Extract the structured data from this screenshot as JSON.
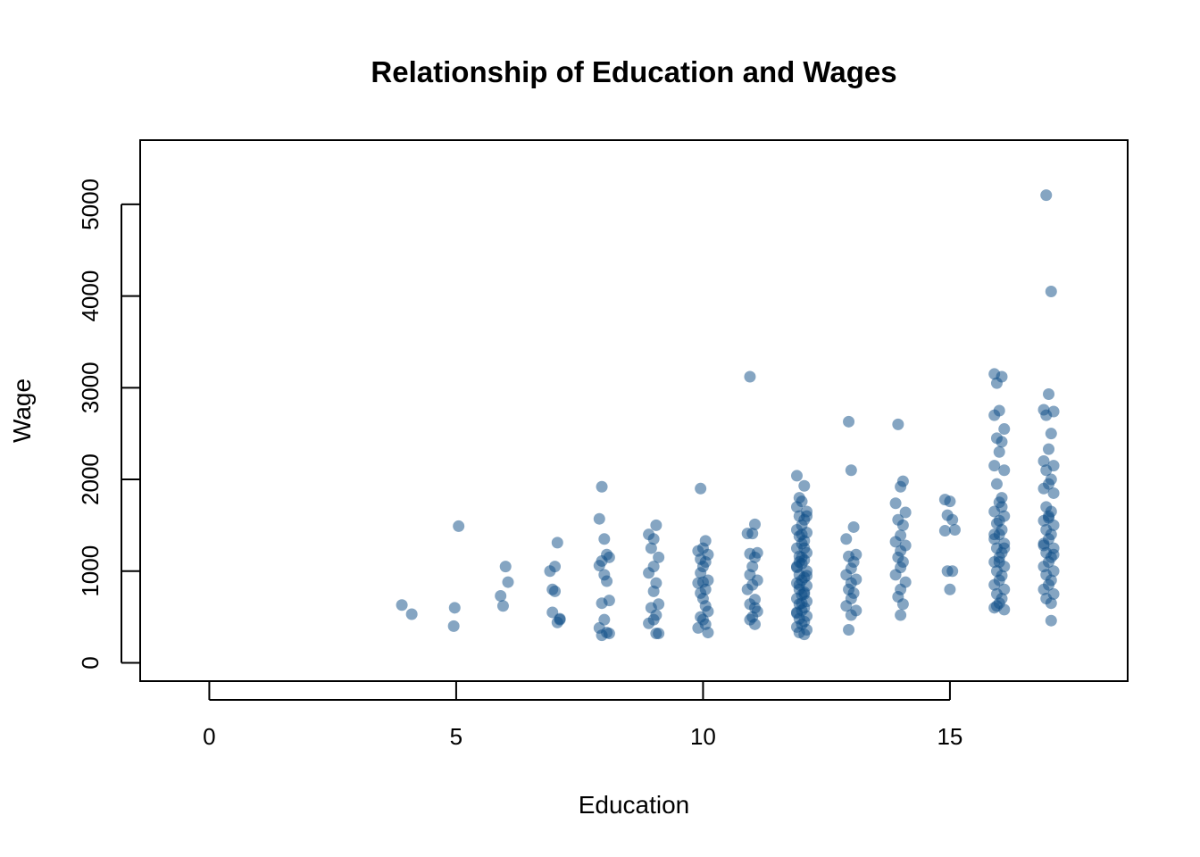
{
  "chart_data": {
    "type": "scatter",
    "title": "Relationship of Education and Wages",
    "xlabel": "Education",
    "ylabel": "Wage",
    "xlim": [
      -1.4,
      18.6
    ],
    "ylim": [
      -200,
      5700
    ],
    "x_ticks": [
      0,
      5,
      10,
      15
    ],
    "y_ticks": [
      0,
      1000,
      2000,
      3000,
      4000,
      5000
    ],
    "grid": false,
    "point_color": "#0B4C86",
    "point_opacity": 0.5,
    "x": [
      3.9,
      4.1,
      4.95,
      5.05,
      4.97,
      5.9,
      6.0,
      6.05,
      5.95,
      6.95,
      7.05,
      7.0,
      6.9,
      7.1,
      7.0,
      6.95,
      7.05,
      7.1,
      7.95,
      7.9,
      8.0,
      8.05,
      7.95,
      8.1,
      7.9,
      8.0,
      8.05,
      8.1,
      7.95,
      8.0,
      7.9,
      8.05,
      7.95,
      8.1,
      8.9,
      9.05,
      9.0,
      8.95,
      9.1,
      9.0,
      8.9,
      9.05,
      9.0,
      9.1,
      8.95,
      9.05,
      9.0,
      8.9,
      9.05,
      9.1,
      9.95,
      10.05,
      10.0,
      9.9,
      10.1,
      9.95,
      10.05,
      10.0,
      9.95,
      10.1,
      10.0,
      9.9,
      10.05,
      9.95,
      10.0,
      10.05,
      10.1,
      9.95,
      10.0,
      10.05,
      9.9,
      10.1,
      10.95,
      11.05,
      11.0,
      10.9,
      11.1,
      10.95,
      11.05,
      11.0,
      10.95,
      11.1,
      11.0,
      10.9,
      11.05,
      10.95,
      11.05,
      11.1,
      11.0,
      10.95,
      11.05,
      11.9,
      12.05,
      11.95,
      12.0,
      11.9,
      12.1,
      11.95,
      12.05,
      12.0,
      11.9,
      12.1,
      11.95,
      12.05,
      12.0,
      11.9,
      12.1,
      11.95,
      12.05,
      12.0,
      11.9,
      12.1,
      11.95,
      12.05,
      12.0,
      11.9,
      12.1,
      11.95,
      12.05,
      12.0,
      11.9,
      12.1,
      11.95,
      12.05,
      12.0,
      11.9,
      12.1,
      11.95,
      12.05,
      12.0,
      11.9,
      12.1,
      11.95,
      12.05,
      12.0,
      11.9,
      12.1,
      11.95,
      12.05,
      12.0,
      11.9,
      12.1,
      12.0,
      12.05,
      11.95,
      12.95,
      13.0,
      13.05,
      12.9,
      13.1,
      12.95,
      13.05,
      13.0,
      12.9,
      13.1,
      13.0,
      12.95,
      13.05,
      13.0,
      12.9,
      13.1,
      13.0,
      12.95,
      13.95,
      14.05,
      14.0,
      13.9,
      14.1,
      13.95,
      14.05,
      14.0,
      13.9,
      14.1,
      14.0,
      13.95,
      14.05,
      14.0,
      13.9,
      14.1,
      14.0,
      13.95,
      14.05,
      14.0,
      14.9,
      15.0,
      14.95,
      15.05,
      14.9,
      15.1,
      14.95,
      15.05,
      15.0,
      15.9,
      16.05,
      15.95,
      16.0,
      15.9,
      16.1,
      15.95,
      16.05,
      16.0,
      15.9,
      16.1,
      15.95,
      16.05,
      16.0,
      15.9,
      16.1,
      15.95,
      16.05,
      16.0,
      15.9,
      16.1,
      15.95,
      16.05,
      16.0,
      15.9,
      16.1,
      15.95,
      16.05,
      16.0,
      15.9,
      16.1,
      15.95,
      16.05,
      16.0,
      15.9,
      16.1,
      15.95,
      16.05,
      16.0,
      15.9,
      16.1,
      16.0,
      16.95,
      17.05,
      17.0,
      16.9,
      17.1,
      16.95,
      17.05,
      17.0,
      16.9,
      17.1,
      16.95,
      17.05,
      17.0,
      16.9,
      17.1,
      16.95,
      17.05,
      17.0,
      16.9,
      17.1,
      16.95,
      17.05,
      17.0,
      16.9,
      17.1,
      16.95,
      17.05,
      17.0,
      16.9,
      17.1,
      16.95,
      17.05,
      17.0,
      16.9,
      17.1,
      16.95,
      17.05,
      17.0,
      16.9,
      17.1,
      17.05
    ],
    "y": [
      630,
      530,
      400,
      1490,
      600,
      730,
      1050,
      880,
      620,
      800,
      1310,
      1050,
      1000,
      470,
      780,
      550,
      440,
      480,
      1920,
      1570,
      1350,
      1180,
      1110,
      1150,
      1060,
      960,
      890,
      680,
      650,
      470,
      380,
      330,
      300,
      320,
      1400,
      1500,
      1350,
      1250,
      1150,
      1050,
      980,
      870,
      780,
      640,
      600,
      520,
      470,
      430,
      320,
      320,
      1900,
      1330,
      1250,
      1220,
      1180,
      1130,
      1100,
      1050,
      980,
      900,
      880,
      870,
      800,
      760,
      700,
      620,
      560,
      500,
      470,
      420,
      380,
      330,
      3120,
      1510,
      1410,
      1410,
      1200,
      1190,
      1150,
      1050,
      960,
      900,
      850,
      800,
      690,
      640,
      600,
      560,
      500,
      470,
      420,
      2040,
      1930,
      1800,
      1760,
      1700,
      1650,
      1600,
      1560,
      1500,
      1450,
      1420,
      1380,
      1330,
      1300,
      1250,
      1200,
      1160,
      1120,
      1080,
      1040,
      1000,
      960,
      930,
      900,
      870,
      840,
      800,
      770,
      740,
      700,
      670,
      640,
      600,
      570,
      540,
      510,
      480,
      450,
      420,
      390,
      360,
      330,
      310,
      1150,
      1050,
      950,
      850,
      750,
      650,
      550,
      1600,
      1400,
      1250,
      1100,
      2630,
      2100,
      1480,
      1350,
      1180,
      1160,
      1100,
      1030,
      960,
      910,
      870,
      800,
      760,
      700,
      620,
      570,
      520,
      360,
      2600,
      1980,
      1920,
      1740,
      1640,
      1560,
      1500,
      1390,
      1320,
      1280,
      1220,
      1150,
      1100,
      1040,
      960,
      880,
      800,
      720,
      640,
      520,
      1780,
      1760,
      1610,
      1560,
      1440,
      1450,
      1000,
      1000,
      800,
      3150,
      3120,
      3050,
      2750,
      2700,
      2550,
      2450,
      2410,
      2300,
      2150,
      2100,
      1950,
      1800,
      1750,
      1650,
      1600,
      1520,
      1450,
      1400,
      1350,
      1300,
      1250,
      1200,
      1150,
      1100,
      1050,
      1000,
      950,
      900,
      850,
      800,
      750,
      700,
      650,
      600,
      580,
      620,
      1700,
      1550,
      1400,
      1250,
      1100,
      5100,
      4050,
      2930,
      2760,
      2740,
      2700,
      2500,
      2330,
      2200,
      2150,
      2100,
      2000,
      1950,
      1900,
      1850,
      1700,
      1650,
      1600,
      1550,
      1500,
      1450,
      1400,
      1350,
      1300,
      1250,
      1200,
      1150,
      1100,
      1050,
      1000,
      960,
      900,
      850,
      800,
      750,
      700,
      650,
      1580,
      1280,
      1180,
      460
    ]
  }
}
